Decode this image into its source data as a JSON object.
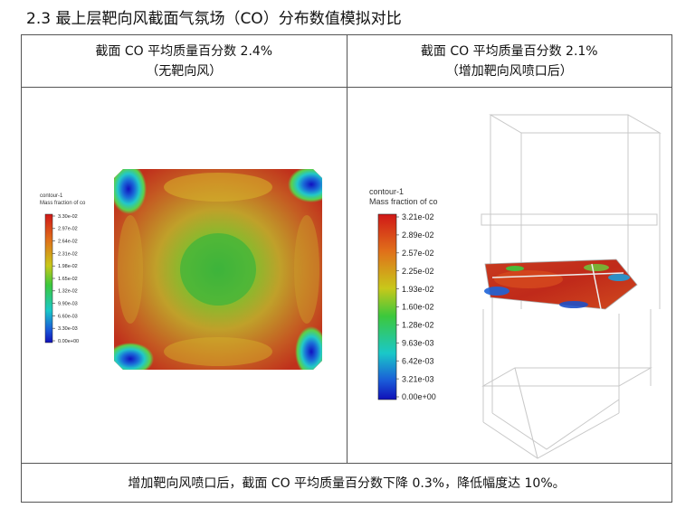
{
  "heading": "2.3 最上层靶向风截面气氛场（CO）分布数值模拟对比",
  "left": {
    "title_line1": "截面 CO 平均质量百分数 2.4%",
    "title_line2": "（无靶向风）",
    "legend_title1": "contour-1",
    "legend_title2": "Mass fraction of co",
    "legend_labels": [
      "3.30e-02",
      "2.97e-02",
      "2.64e-02",
      "2.31e-02",
      "1.98e-02",
      "1.65e-02",
      "1.32e-02",
      "9.90e-03",
      "6.60e-03",
      "3.30e-03",
      "0.00e+00"
    ]
  },
  "right": {
    "title_line1": "截面 CO 平均质量百分数 2.1%",
    "title_line2": "（增加靶向风喷口后）",
    "legend_title1": "contour-1",
    "legend_title2": "Mass fraction of co",
    "legend_labels": [
      "3.21e-02",
      "2.89e-02",
      "2.57e-02",
      "2.25e-02",
      "1.93e-02",
      "1.60e-02",
      "1.28e-02",
      "9.63e-03",
      "6.42e-03",
      "3.21e-03",
      "0.00e+00"
    ]
  },
  "footer": "增加靶向风喷口后，截面 CO 平均质量百分数下降 0.3%，降低幅度达 10%。",
  "colors": {
    "high": "#c0281e",
    "mid": "#52b733",
    "low": "#1414c8"
  }
}
